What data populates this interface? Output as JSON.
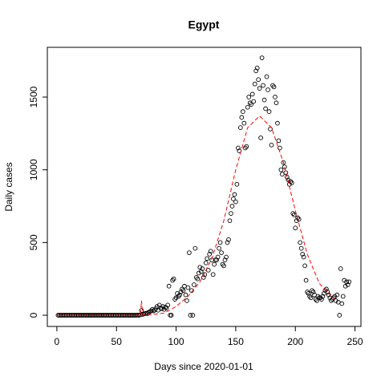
{
  "chart_data": {
    "type": "scatter",
    "title": "Egypt",
    "x_label": "Days since 2020-01-01",
    "y_label": "Daily cases",
    "xlim": [
      -8,
      255
    ],
    "ylim": [
      -77,
      1842
    ],
    "xticks": [
      0,
      50,
      100,
      150,
      200,
      250
    ],
    "yticks": [
      0,
      500,
      1000,
      1500
    ],
    "series": [
      {
        "color": "#000000",
        "style": "open-circle",
        "x": [
          1,
          2,
          3,
          4,
          5,
          6,
          7,
          8,
          9,
          10,
          11,
          12,
          13,
          14,
          15,
          16,
          17,
          18,
          19,
          20,
          21,
          22,
          23,
          24,
          25,
          26,
          27,
          28,
          29,
          30,
          31,
          32,
          33,
          34,
          35,
          36,
          37,
          38,
          39,
          40,
          41,
          42,
          43,
          44,
          45,
          46,
          47,
          48,
          49,
          50,
          51,
          52,
          53,
          54,
          55,
          56,
          57,
          58,
          59,
          60,
          61,
          62,
          63,
          64,
          65,
          66,
          67,
          68,
          69,
          70,
          71,
          72,
          73,
          74,
          75,
          76,
          77,
          78,
          79,
          80,
          81,
          82,
          83,
          84,
          85,
          86,
          87,
          88,
          89,
          90,
          91,
          92,
          93,
          94,
          95,
          96,
          97,
          98,
          99,
          100,
          101,
          102,
          103,
          104,
          105,
          106,
          107,
          108,
          109,
          110,
          111,
          112,
          113,
          114,
          115,
          116,
          117,
          118,
          119,
          120,
          121,
          122,
          123,
          124,
          125,
          126,
          127,
          128,
          129,
          130,
          131,
          132,
          133,
          134,
          135,
          136,
          137,
          138,
          139,
          140,
          141,
          142,
          143,
          144,
          145,
          146,
          147,
          148,
          149,
          150,
          151,
          152,
          153,
          154,
          155,
          156,
          157,
          158,
          159,
          160,
          161,
          162,
          163,
          164,
          165,
          166,
          167,
          168,
          169,
          170,
          171,
          172,
          173,
          174,
          175,
          176,
          177,
          178,
          179,
          180,
          181,
          182,
          183,
          184,
          185,
          186,
          187,
          188,
          189,
          190,
          191,
          192,
          193,
          194,
          195,
          196,
          197,
          198,
          199,
          200,
          201,
          202,
          203,
          204,
          205,
          206,
          207,
          208,
          209,
          210,
          211,
          212,
          213,
          214,
          215,
          216,
          217,
          218,
          219,
          220,
          221,
          222,
          223,
          224,
          225,
          226,
          227,
          228,
          229,
          230,
          231,
          232,
          233,
          234,
          235,
          236,
          237,
          238,
          239,
          240,
          241,
          242,
          243,
          244,
          245
        ],
        "values": [
          0,
          0,
          0,
          0,
          0,
          0,
          0,
          0,
          0,
          0,
          0,
          0,
          0,
          0,
          0,
          0,
          0,
          0,
          0,
          0,
          0,
          0,
          0,
          0,
          0,
          0,
          0,
          0,
          0,
          0,
          0,
          0,
          0,
          0,
          0,
          0,
          0,
          0,
          0,
          0,
          0,
          0,
          0,
          0,
          0,
          0,
          0,
          0,
          0,
          0,
          0,
          0,
          0,
          0,
          0,
          0,
          0,
          0,
          0,
          0,
          0,
          0,
          0,
          0,
          0,
          0,
          0,
          1,
          0,
          3,
          33,
          6,
          9,
          12,
          14,
          11,
          20,
          25,
          30,
          40,
          30,
          35,
          45,
          60,
          35,
          70,
          50,
          45,
          60,
          40,
          55,
          50,
          70,
          200,
          0,
          0,
          240,
          250,
          110,
          120,
          150,
          130,
          140,
          160,
          180,
          170,
          200,
          140,
          100,
          190,
          430,
          0,
          170,
          0,
          210,
          460,
          260,
          250,
          290,
          330,
          300,
          320,
          260,
          280,
          360,
          390,
          310,
          420,
          440,
          380,
          280,
          350,
          380,
          380,
          400,
          460,
          500,
          430,
          350,
          340,
          380,
          400,
          500,
          520,
          650,
          700,
          750,
          800,
          830,
          780,
          900,
          1150,
          1130,
          1290,
          1360,
          1400,
          1320,
          1150,
          1160,
          1430,
          1500,
          1460,
          1450,
          1520,
          1470,
          1590,
          1680,
          1700,
          1620,
          1560,
          1220,
          1770,
          1580,
          1480,
          1420,
          1640,
          1550,
          1400,
          1280,
          1170,
          1580,
          1570,
          1500,
          1460,
          1320,
          1200,
          1150,
          1000,
          970,
          1050,
          1020,
          980,
          950,
          930,
          900,
          920,
          910,
          700,
          690,
          600,
          650,
          670,
          660,
          500,
          460,
          420,
          400,
          340,
          240,
          160,
          150,
          130,
          120,
          170,
          160,
          140,
          110,
          100,
          130,
          120,
          120,
          110,
          130,
          150,
          170,
          180,
          160,
          140,
          120,
          100,
          110,
          120,
          130,
          100,
          140,
          90,
          0,
          320,
          80,
          130,
          240,
          200,
          230,
          210,
          230
        ]
      },
      {
        "color": "#ff0000",
        "style": "dashed-line",
        "x": [
          1,
          70,
          71,
          72,
          80,
          90,
          100,
          110,
          120,
          130,
          140,
          150,
          160,
          170,
          180,
          190,
          200,
          210,
          220,
          230,
          233
        ],
        "values": [
          0,
          0,
          100,
          5,
          5,
          15,
          60,
          130,
          230,
          390,
          650,
          1000,
          1290,
          1370,
          1290,
          1050,
          720,
          420,
          220,
          130,
          110
        ]
      }
    ]
  }
}
